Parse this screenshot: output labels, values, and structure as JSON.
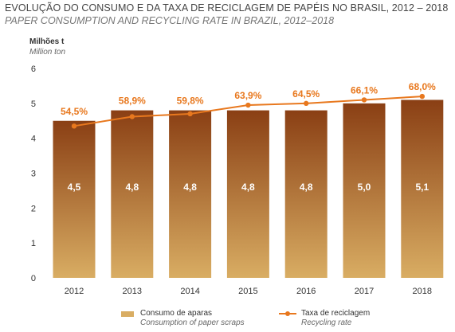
{
  "title": "EVOLUÇÃO DO CONSUMO E DA TAXA DE RECICLAGEM DE PAPÉIS NO BRASIL, 2012 – 2018",
  "subtitle": "PAPER CONSUMPTION AND RECYCLING RATE IN BRAZIL, 2012–2018",
  "ylabel": "Milhões t",
  "ylabel_en": "Million ton",
  "colors": {
    "bar_top": "#8a3f14",
    "bar_bottom": "#d9ad63",
    "line": "#e8781e",
    "axis_text": "#333333"
  },
  "legend": {
    "bar_label": "Consumo de aparas",
    "bar_label_en": "Consumption of paper scraps",
    "line_label": "Taxa de reciclagem",
    "line_label_en": "Recycling rate"
  },
  "chart_data": {
    "type": "bar",
    "categories": [
      "2012",
      "2013",
      "2014",
      "2015",
      "2016",
      "2017",
      "2018"
    ],
    "ylim": [
      0,
      6
    ],
    "yticks": [
      0,
      1,
      2,
      3,
      4,
      5,
      6
    ],
    "grid": false,
    "legend_position": "bottom",
    "series": [
      {
        "name": "Consumo de aparas",
        "type": "bar",
        "values": [
          4.5,
          4.8,
          4.8,
          4.8,
          4.8,
          5.0,
          5.1
        ],
        "value_labels": [
          "4,5",
          "4,8",
          "4,8",
          "4,8",
          "4,8",
          "5,0",
          "5,1"
        ]
      },
      {
        "name": "Taxa de reciclagem",
        "type": "line",
        "values_pct": [
          54.5,
          58.9,
          59.8,
          63.9,
          64.5,
          66.1,
          68.0
        ],
        "plotted_on_left_axis": [
          4.35,
          4.62,
          4.7,
          4.95,
          5.0,
          5.1,
          5.2
        ],
        "value_labels": [
          "54,5%",
          "58,9%",
          "59,8%",
          "63,9%",
          "64,5%",
          "66,1%",
          "68,0%"
        ]
      }
    ]
  }
}
